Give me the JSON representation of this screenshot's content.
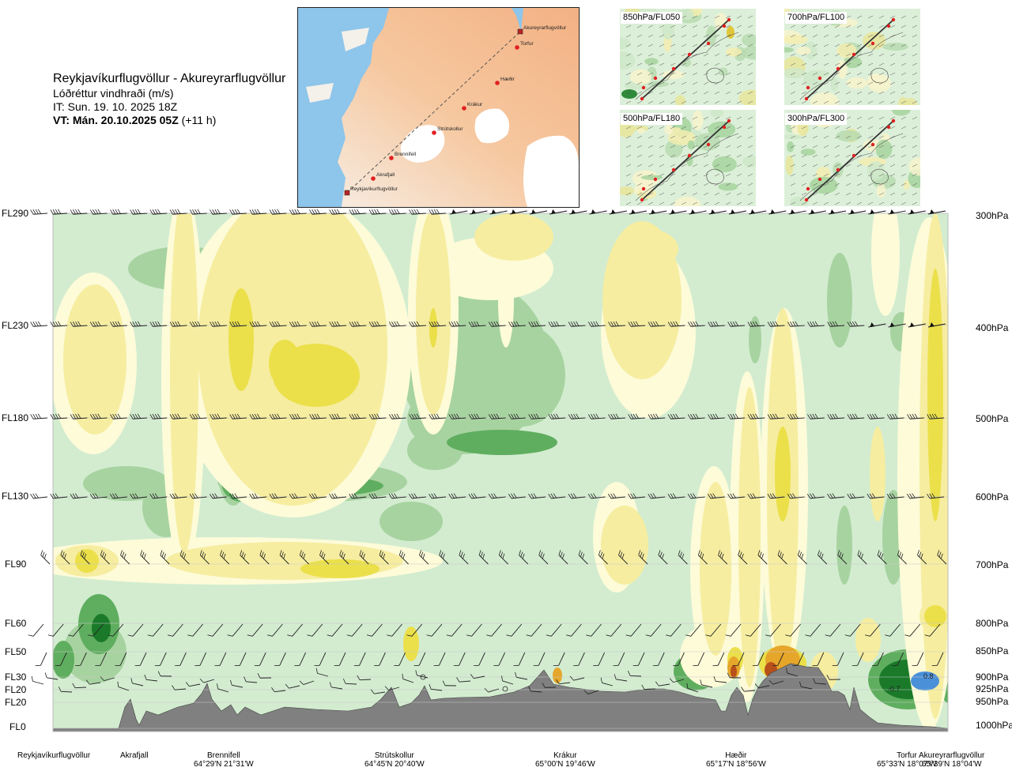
{
  "header": {
    "route": "Reykjavíkurflugvöllur - Akureyrarflugvöllur",
    "variable": "Lóðréttur vindhraði (m/s)",
    "it": "IT: Sun. 19. 10. 2025 18Z",
    "vt_bold": "VT: Mán. 20.10.2025 05Z",
    "vt_offset": " (+11 h)"
  },
  "map": {
    "waypoints": [
      {
        "name": "Akureyrarflugvöllur"
      },
      {
        "name": "Torfur"
      },
      {
        "name": "Hæðir"
      },
      {
        "name": "Krákur"
      },
      {
        "name": "Strútskollur"
      },
      {
        "name": "Brennifell"
      },
      {
        "name": "Akrafjall"
      },
      {
        "name": "Reykjavíkurflugvöllur"
      }
    ]
  },
  "mini_maps": [
    {
      "label": "850hPa/FL050"
    },
    {
      "label": "700hPa/FL100"
    },
    {
      "label": "500hPa/FL180"
    },
    {
      "label": "300hPa/FL300"
    }
  ],
  "levels": [
    {
      "fl": "FL290",
      "hpa": "300hPa"
    },
    {
      "fl": "FL230",
      "hpa": "400hPa"
    },
    {
      "fl": "FL180",
      "hpa": "500hPa"
    },
    {
      "fl": "FL130",
      "hpa": "600hPa"
    },
    {
      "fl": "FL90",
      "hpa": "700hPa"
    },
    {
      "fl": "FL60",
      "hpa": "800hPa"
    },
    {
      "fl": "FL50",
      "hpa": "850hPa"
    },
    {
      "fl": "FL30",
      "hpa": "900hPa"
    },
    {
      "fl": "FL20",
      "hpa": "925hPa"
    },
    {
      "fl": "FL20",
      "hpa": "950hPa"
    },
    {
      "fl": "FL0",
      "hpa": "1000hPa"
    }
  ],
  "locations": [
    {
      "name": "Reykjavíkurflugvöllur",
      "coord": ""
    },
    {
      "name": "Akrafjall",
      "coord": ""
    },
    {
      "name": "Brennifell",
      "coord": "64°29'N 21°31'W"
    },
    {
      "name": "Strútskollur",
      "coord": "64°45'N 20°40'W"
    },
    {
      "name": "Krákur",
      "coord": "65°00'N 19°46'W"
    },
    {
      "name": "Hæðir",
      "coord": "65°17'N 18°56'W"
    },
    {
      "name": "Torfur",
      "coord": "65°33'N 18°07'W"
    },
    {
      "name": "Akureyrarflugvöllur",
      "coord": "65°39'N 18°04'W"
    }
  ],
  "chart_data": {
    "type": "heatmap",
    "title": "Reykjavíkurflugvöllur - Akureyrarflugvöllur",
    "variable": "Lóðréttur vindhraði (m/s)",
    "y_axis_left": [
      "FL290",
      "FL230",
      "FL180",
      "FL130",
      "FL90",
      "FL60",
      "FL50",
      "FL30",
      "FL20",
      "FL20",
      "FL0"
    ],
    "y_axis_right": [
      "300hPa",
      "400hPa",
      "500hPa",
      "600hPa",
      "700hPa",
      "800hPa",
      "850hPa",
      "900hPa",
      "925hPa",
      "950hPa",
      "1000hPa"
    ],
    "x_axis": [
      "Reykjavíkurflugvöllur",
      "Akrafjall",
      "Brennifell",
      "Strútskollur",
      "Krákur",
      "Hæðir",
      "Torfur",
      "Akureyrarflugvöllur"
    ],
    "annotations": [
      "-0.7",
      "0.8"
    ],
    "colors": {
      "strong_down": "#1a7a2a",
      "mod_down": "#5fae5f",
      "weak_down": "#a7d3a0",
      "neutral_down": "#d3ecd0",
      "neutral_up": "#fdfbd8",
      "weak_up": "#f6eda0",
      "mod_up": "#ebe04a",
      "strong_up": "#e6a62a",
      "very_strong_up": "#b8501a",
      "terrain": "#808080",
      "blue": "#4a90d9"
    }
  }
}
